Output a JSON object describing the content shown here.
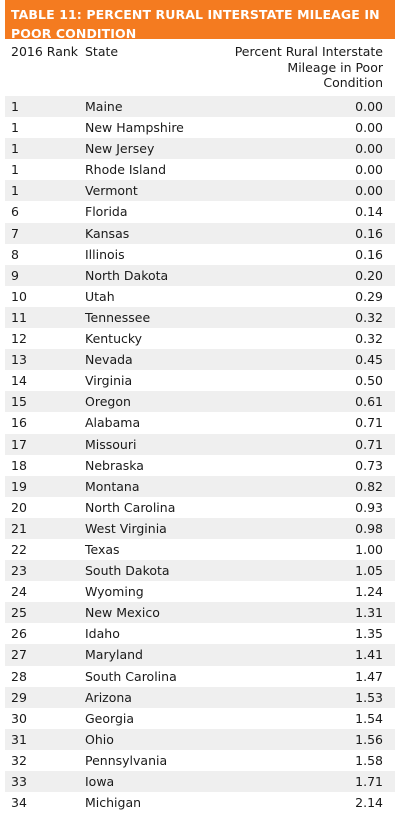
{
  "table": {
    "title": "TABLE 11: PERCENT RURAL INTERSTATE MILEAGE IN POOR CONDITION",
    "headers": {
      "rank": "2016 Rank",
      "state": "State",
      "value": "Percent Rural Interstate Mileage in Poor Condition"
    },
    "rows": [
      {
        "rank": "1",
        "state": "Maine",
        "value": "0.00"
      },
      {
        "rank": "1",
        "state": "New Hampshire",
        "value": "0.00"
      },
      {
        "rank": "1",
        "state": "New Jersey",
        "value": "0.00"
      },
      {
        "rank": "1",
        "state": "Rhode Island",
        "value": "0.00"
      },
      {
        "rank": "1",
        "state": "Vermont",
        "value": "0.00"
      },
      {
        "rank": "6",
        "state": "Florida",
        "value": "0.14"
      },
      {
        "rank": "7",
        "state": "Kansas",
        "value": "0.16"
      },
      {
        "rank": "8",
        "state": "Illinois",
        "value": "0.16"
      },
      {
        "rank": "9",
        "state": "North Dakota",
        "value": "0.20"
      },
      {
        "rank": "10",
        "state": "Utah",
        "value": "0.29"
      },
      {
        "rank": "11",
        "state": "Tennessee",
        "value": "0.32"
      },
      {
        "rank": "12",
        "state": "Kentucky",
        "value": "0.32"
      },
      {
        "rank": "13",
        "state": "Nevada",
        "value": "0.45"
      },
      {
        "rank": "14",
        "state": "Virginia",
        "value": "0.50"
      },
      {
        "rank": "15",
        "state": "Oregon",
        "value": "0.61"
      },
      {
        "rank": "16",
        "state": "Alabama",
        "value": "0.71"
      },
      {
        "rank": "17",
        "state": "Missouri",
        "value": "0.71"
      },
      {
        "rank": "18",
        "state": "Nebraska",
        "value": "0.73"
      },
      {
        "rank": "19",
        "state": "Montana",
        "value": "0.82"
      },
      {
        "rank": "20",
        "state": "North Carolina",
        "value": "0.93"
      },
      {
        "rank": "21",
        "state": "West Virginia",
        "value": "0.98"
      },
      {
        "rank": "22",
        "state": "Texas",
        "value": "1.00"
      },
      {
        "rank": "23",
        "state": "South Dakota",
        "value": "1.05"
      },
      {
        "rank": "24",
        "state": "Wyoming",
        "value": "1.24"
      },
      {
        "rank": "25",
        "state": "New Mexico",
        "value": "1.31"
      },
      {
        "rank": "26",
        "state": "Idaho",
        "value": "1.35"
      },
      {
        "rank": "27",
        "state": "Maryland",
        "value": "1.41"
      },
      {
        "rank": "28",
        "state": "South Carolina",
        "value": "1.47"
      },
      {
        "rank": "29",
        "state": "Arizona",
        "value": "1.53"
      },
      {
        "rank": "30",
        "state": "Georgia",
        "value": "1.54"
      },
      {
        "rank": "31",
        "state": "Ohio",
        "value": "1.56"
      },
      {
        "rank": "32",
        "state": "Pennsylvania",
        "value": "1.58"
      },
      {
        "rank": "33",
        "state": "Iowa",
        "value": "1.71"
      },
      {
        "rank": "34",
        "state": "Michigan",
        "value": "2.14"
      }
    ]
  }
}
